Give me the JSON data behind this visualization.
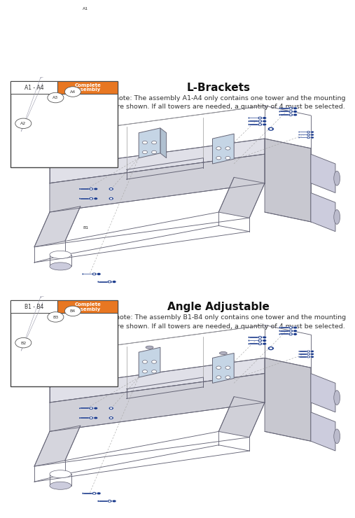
{
  "title_top": "L-Brackets",
  "title_bottom": "Angle Adjustable",
  "note_A": "Please note: The assembly A1-A4 only contains one tower and the mounting\nhardware shown. If all towers are needed, a quantity of 4 must be selected.",
  "note_B": "Please note: The assembly B1-B4 only contains one tower and the mounting\nhardware shown. If all towers are needed, a quantity of 4 must be selected.",
  "label_A": "A1 - A4",
  "label_B": "B1 - B4",
  "complete_assembly": "Complete\nAssembly",
  "orange_color": "#E87722",
  "blue_color": "#1a3a8c",
  "frame_color": "#888899",
  "frame_edge": "#666677",
  "dark": "#555566",
  "bg_white": "#ffffff",
  "panel_border": "#555555",
  "title_fontsize": 11,
  "note_fontsize": 6.8
}
